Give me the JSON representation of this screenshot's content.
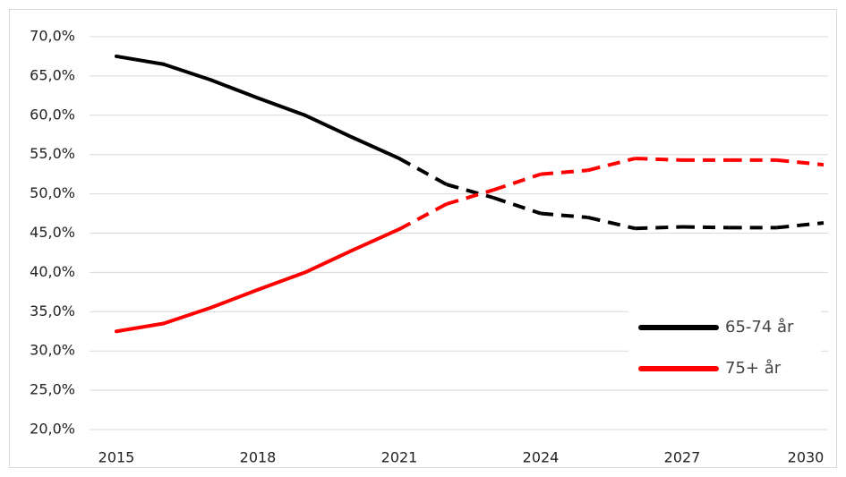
{
  "chart_data": {
    "type": "line",
    "x": [
      2015,
      2016,
      2017,
      2018,
      2019,
      2020,
      2021,
      2022,
      2023,
      2024,
      2025,
      2026,
      2027,
      2028,
      2029,
      2030
    ],
    "xlim": [
      2015,
      2030
    ],
    "xticks": [
      2015,
      2018,
      2021,
      2024,
      2027,
      2030
    ],
    "ylim": [
      20,
      70
    ],
    "yticks": [
      {
        "value": 20,
        "label": "20,0%"
      },
      {
        "value": 25,
        "label": "25,0%"
      },
      {
        "value": 30,
        "label": "30,0%"
      },
      {
        "value": 35,
        "label": "35,0%"
      },
      {
        "value": 40,
        "label": "40,0%"
      },
      {
        "value": 45,
        "label": "45,0%"
      },
      {
        "value": 50,
        "label": "50,0%"
      },
      {
        "value": 55,
        "label": "55,0%"
      },
      {
        "value": 60,
        "label": "60,0%"
      },
      {
        "value": 65,
        "label": "65,0%"
      },
      {
        "value": 70,
        "label": "70,0%"
      }
    ],
    "grid": true,
    "dashed_from": 2021,
    "legend": "lower right",
    "series": [
      {
        "name": "65-74 år",
        "color": "#000000",
        "values": [
          67.5,
          66.5,
          64.5,
          62.2,
          60.0,
          57.2,
          54.5,
          51.2,
          49.5,
          47.5,
          47.0,
          45.6,
          45.8,
          45.7,
          45.7,
          46.3
        ]
      },
      {
        "name": "75+ år",
        "color": "#ff0000",
        "values": [
          32.5,
          33.5,
          35.5,
          37.8,
          40.0,
          42.8,
          45.5,
          48.7,
          50.5,
          52.5,
          53.0,
          54.5,
          54.3,
          54.3,
          54.3,
          53.7
        ]
      }
    ]
  }
}
